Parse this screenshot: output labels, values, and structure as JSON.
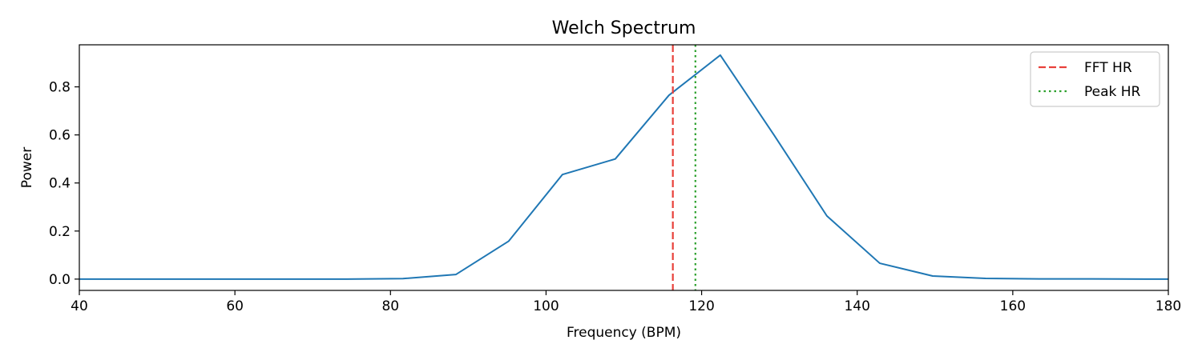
{
  "chart_data": {
    "type": "line",
    "title": "Welch Spectrum",
    "xlabel": "Frequency (BPM)",
    "ylabel": "Power",
    "xlim": [
      40,
      180
    ],
    "ylim": [
      -0.047,
      0.975
    ],
    "xticks": [
      40,
      60,
      80,
      100,
      120,
      140,
      160,
      180
    ],
    "xtick_labels": [
      "40",
      "60",
      "80",
      "100",
      "120",
      "140",
      "160",
      "180"
    ],
    "yticks": [
      0.0,
      0.2,
      0.4,
      0.6,
      0.8
    ],
    "ytick_labels": [
      "0.0",
      "0.2",
      "0.4",
      "0.6",
      "0.8"
    ],
    "grid": false,
    "legend_position": "top-right",
    "series": [
      {
        "color": "#1f77b4",
        "x": [
          40.0,
          46.9,
          53.8,
          60.6,
          67.5,
          74.4,
          81.6,
          88.4,
          95.2,
          102.1,
          108.9,
          115.8,
          122.4,
          129.3,
          136.1,
          142.9,
          149.7,
          156.5,
          163.4,
          170.2,
          177.0,
          180.0
        ],
        "y": [
          0.0,
          0.0,
          0.0,
          0.0,
          0.0,
          0.0,
          0.002,
          0.019,
          0.158,
          0.435,
          0.5,
          0.765,
          0.932,
          0.6,
          0.263,
          0.066,
          0.013,
          0.003,
          0.001,
          0.001,
          0.0,
          0.0
        ]
      }
    ],
    "vlines": [
      {
        "name": "FFT HR",
        "x": 116.3,
        "color": "#e8403a",
        "style": "dashed"
      },
      {
        "name": "Peak HR",
        "x": 119.2,
        "color": "#2ca02c",
        "style": "dotted"
      }
    ]
  }
}
